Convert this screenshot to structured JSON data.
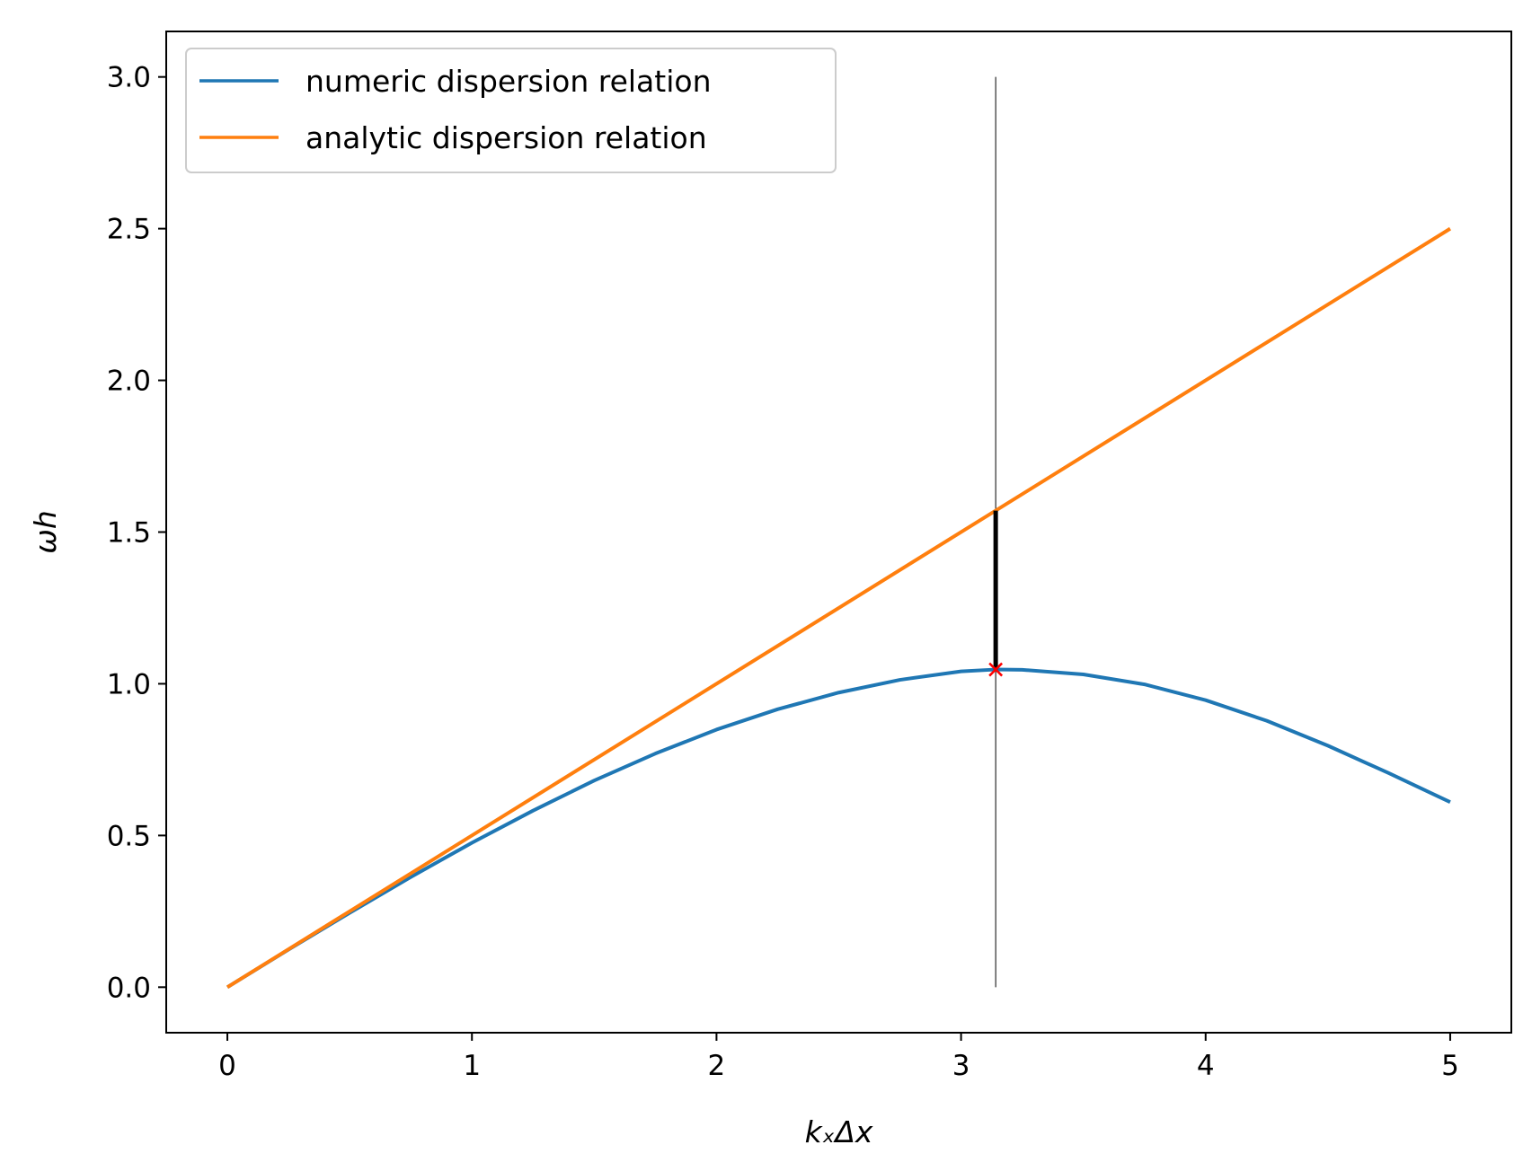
{
  "chart_data": {
    "type": "line",
    "title": "",
    "xlabel": "kₓΔx",
    "ylabel": "ωh",
    "xlim": [
      -0.25,
      5.25
    ],
    "ylim": [
      -0.15,
      3.15
    ],
    "xticks": [
      0,
      1,
      2,
      3,
      4,
      5
    ],
    "xtick_labels": [
      "0",
      "1",
      "2",
      "3",
      "4",
      "5"
    ],
    "yticks": [
      0.0,
      0.5,
      1.0,
      1.5,
      2.0,
      2.5,
      3.0
    ],
    "ytick_labels": [
      "0.0",
      "0.5",
      "1.0",
      "1.5",
      "2.0",
      "2.5",
      "3.0"
    ],
    "grid": false,
    "legend_position": "top-left",
    "series": [
      {
        "name": "numeric dispersion relation",
        "color": "#1f77b4",
        "x": [
          0,
          0.25,
          0.5,
          0.75,
          1.0,
          1.25,
          1.5,
          1.75,
          2.0,
          2.25,
          2.5,
          2.75,
          3.0,
          3.14,
          3.25,
          3.5,
          3.75,
          4.0,
          4.25,
          4.5,
          4.75,
          5.0
        ],
        "y": [
          0,
          0.124,
          0.245,
          0.363,
          0.476,
          0.582,
          0.681,
          0.77,
          0.849,
          0.916,
          0.971,
          1.013,
          1.041,
          1.047,
          1.046,
          1.031,
          0.998,
          0.946,
          0.878,
          0.796,
          0.705,
          0.61
        ]
      },
      {
        "name": "analytic dispersion relation",
        "color": "#ff7f0e",
        "x": [
          0,
          5
        ],
        "y": [
          0,
          2.5
        ]
      }
    ],
    "annotations": {
      "vertical_line": {
        "x": 3.1416,
        "y0": 0,
        "y1": 3.0,
        "color": "#000000"
      },
      "error_bar": {
        "x": 3.1416,
        "y0": 1.047,
        "y1": 1.5708,
        "color": "#000000"
      },
      "marker": {
        "x": 3.1416,
        "y": 1.047,
        "symbol": "x",
        "color": "#ff0000"
      }
    }
  }
}
